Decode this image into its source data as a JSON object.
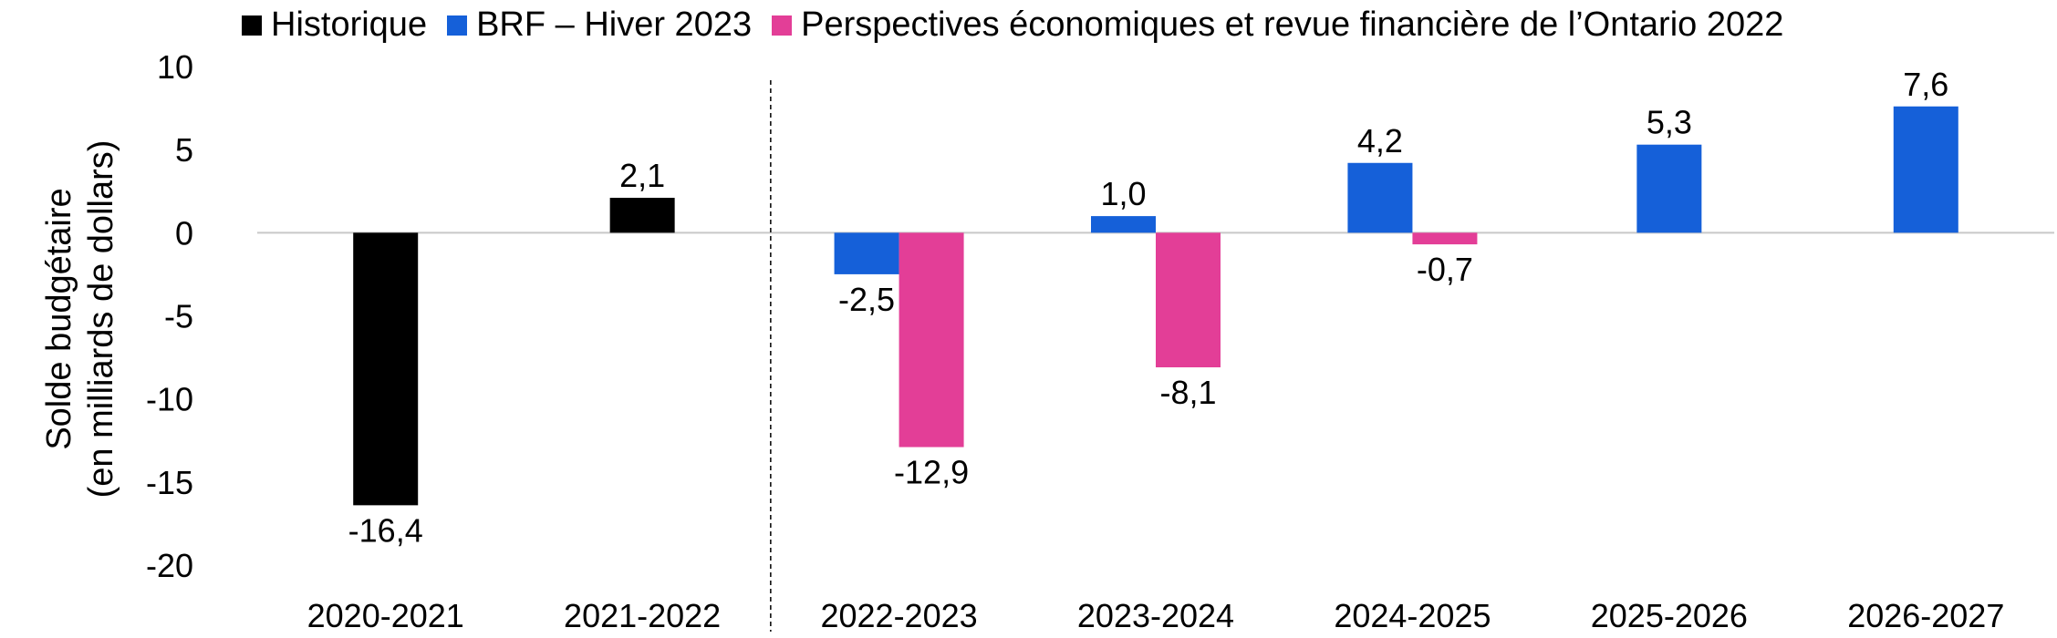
{
  "chart_data": {
    "type": "bar",
    "title": "",
    "xlabel": "",
    "ylabel_lines": [
      "Solde budgétaire",
      "(en milliards de dollars)"
    ],
    "categories": [
      "2020-2021",
      "2021-2022",
      "2022-2023",
      "2023-2024",
      "2024-2025",
      "2025-2026",
      "2026-2027"
    ],
    "ylim": [
      -20,
      10
    ],
    "yticks": [
      10,
      5,
      0,
      -5,
      -10,
      -15,
      -20
    ],
    "ytick_labels": [
      "10",
      "5",
      "0",
      "-5",
      "-10",
      "-15",
      "-20"
    ],
    "grid": false,
    "legend_position": "top",
    "divider_after_category": "2021-2022",
    "series": [
      {
        "name": "Historique",
        "color": "#000000",
        "values": [
          -16.4,
          2.1,
          null,
          null,
          null,
          null,
          null
        ],
        "labels": [
          "-16,4",
          "2,1",
          "",
          "",
          "",
          "",
          ""
        ]
      },
      {
        "name": "BRF – Hiver 2023",
        "color": "#1560d9",
        "values": [
          null,
          null,
          -2.5,
          1.0,
          4.2,
          5.3,
          7.6
        ],
        "labels": [
          "",
          "",
          "-2,5",
          "1,0",
          "4,2",
          "5,3",
          "7,6"
        ]
      },
      {
        "name": "Perspectives économiques et revue financière de l’Ontario 2022",
        "color": "#e33e97",
        "values": [
          null,
          null,
          -12.9,
          -8.1,
          -0.7,
          null,
          null
        ],
        "labels": [
          "",
          "",
          "-12,9",
          "-8,1",
          "-0,7",
          "",
          ""
        ]
      }
    ]
  }
}
